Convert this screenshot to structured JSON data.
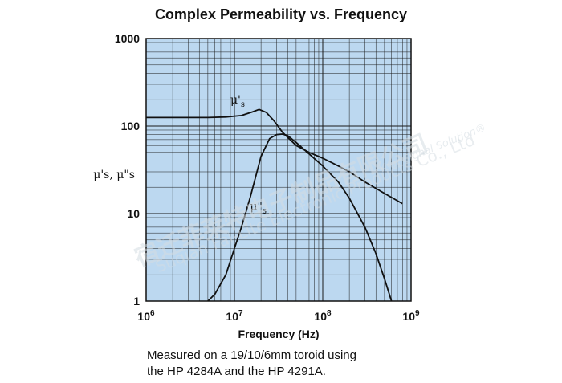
{
  "chart_data": {
    "type": "line",
    "title": "Complex Permeability vs. Frequency",
    "xlabel": "Frequency (Hz)",
    "ylabel": "μ's, μ\"s",
    "x_scale": "log",
    "y_scale": "log",
    "xlim": [
      1000000,
      1000000000
    ],
    "ylim": [
      1,
      1000
    ],
    "grid": true,
    "x_ticks": [
      {
        "value": 1000000,
        "base": "10",
        "exp": "6"
      },
      {
        "value": 10000000,
        "base": "10",
        "exp": "7"
      },
      {
        "value": 100000000,
        "base": "10",
        "exp": "8"
      },
      {
        "value": 1000000000,
        "base": "10",
        "exp": "9"
      }
    ],
    "y_ticks": [
      {
        "value": 1,
        "label": "1"
      },
      {
        "value": 10,
        "label": "10"
      },
      {
        "value": 100,
        "label": "100"
      },
      {
        "value": 1000,
        "label": "1000"
      }
    ],
    "series": [
      {
        "name": "μ's",
        "x": [
          1000000,
          3000000,
          5000000,
          8000000,
          12000000,
          16000000,
          19000000,
          23000000,
          28000000,
          35000000,
          50000000,
          70000000,
          100000000,
          150000000,
          200000000,
          300000000,
          500000000,
          800000000
        ],
        "y": [
          125,
          125,
          125,
          127,
          132,
          145,
          155,
          143,
          115,
          85,
          60,
          50,
          43,
          35,
          30,
          23,
          17,
          13
        ]
      },
      {
        "name": "μ\"s",
        "x": [
          5000000,
          6000000,
          8000000,
          10000000,
          12000000,
          15000000,
          20000000,
          25000000,
          30000000,
          35000000,
          40000000,
          50000000,
          70000000,
          100000000,
          150000000,
          200000000,
          300000000,
          400000000,
          500000000,
          600000000
        ],
        "y": [
          1,
          1.2,
          2,
          4,
          7,
          15,
          45,
          72,
          80,
          81,
          78,
          65,
          48,
          35,
          23,
          15,
          7,
          3.5,
          1.8,
          1
        ]
      }
    ],
    "annotations": [
      {
        "series": 0,
        "base": "μ'",
        "sub": "s",
        "at_x": 9000000,
        "at_y": 180
      },
      {
        "series": 1,
        "base": "μ\"",
        "sub": "s",
        "at_x": 15000000,
        "at_y": 11
      }
    ],
    "colors": {
      "plot_bg": "#bcd8f0",
      "grid": "#1a1a1a",
      "curve": "#111111"
    }
  },
  "caption": {
    "line1": "Measured on a 19/10/6mm toroid using",
    "line2": "the HP 4284A and the HP 4291A."
  },
  "watermark": {
    "company_cn": "宿迁菲莱特电子制品有限公司",
    "company_en": "Suqian Fai-Lite Electronic Products Co., Ltd",
    "tagline": "Your Signal Solution®"
  }
}
